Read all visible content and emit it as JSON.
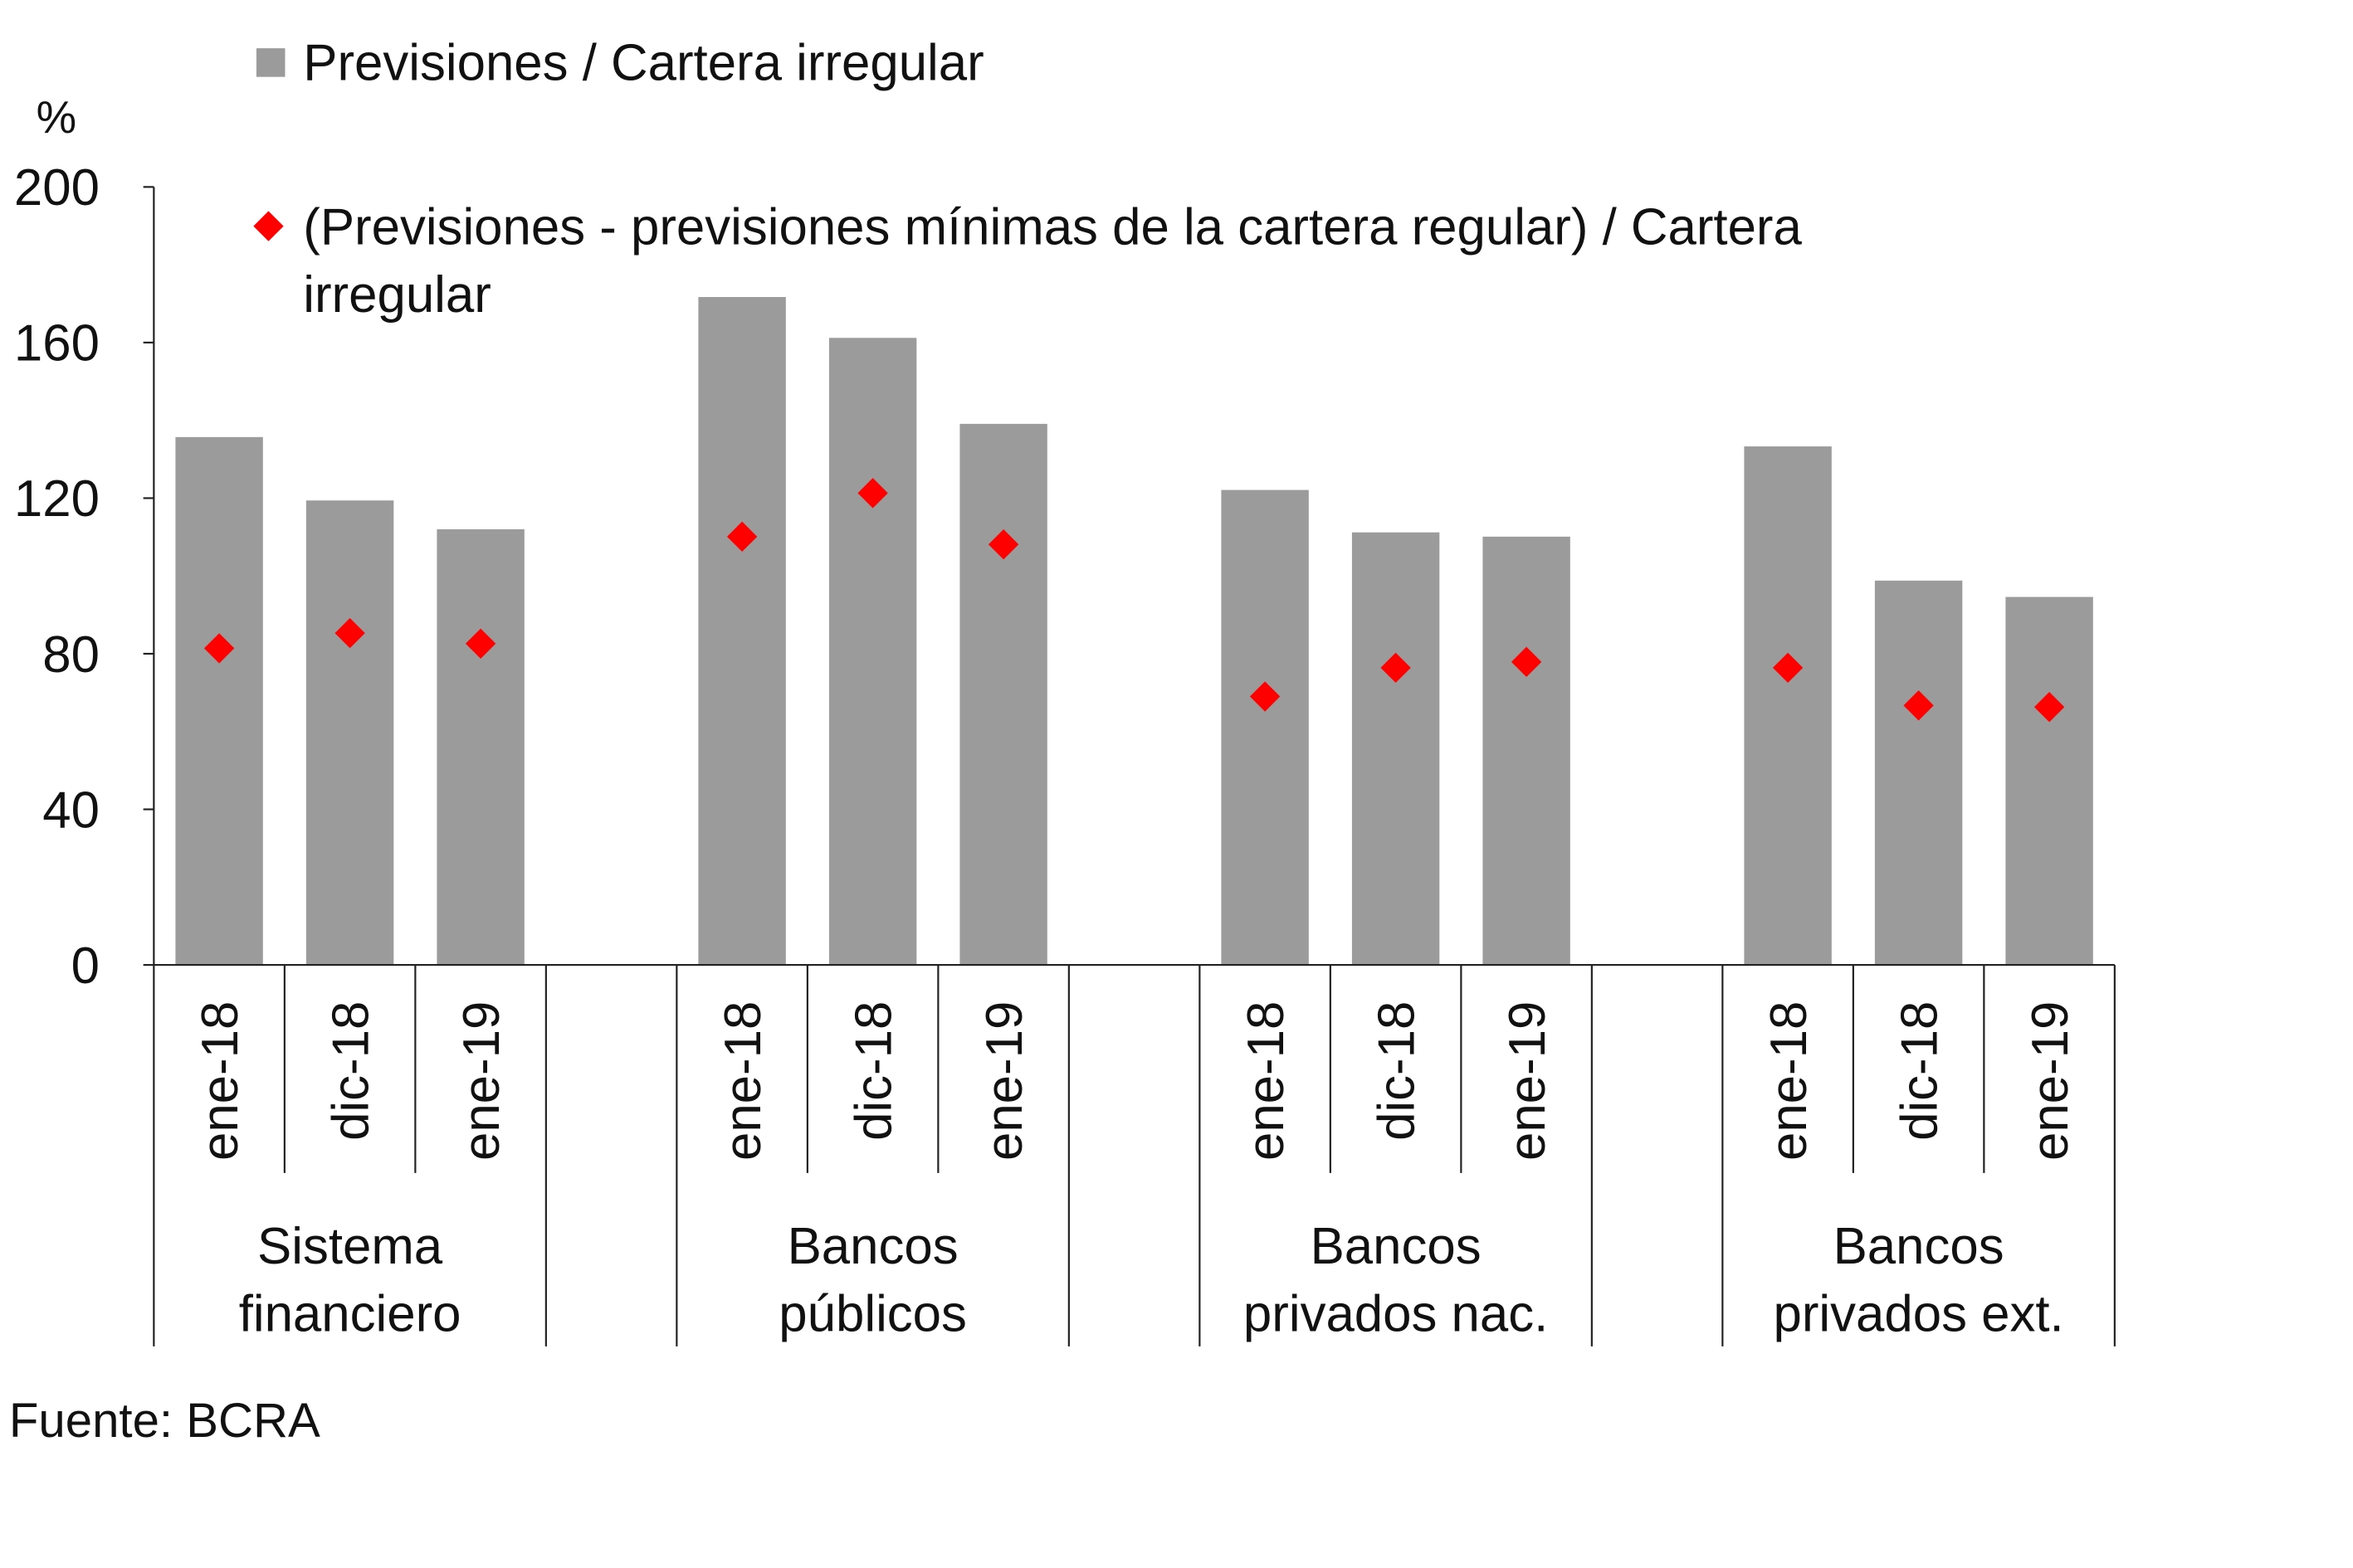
{
  "chart_data": {
    "type": "bar",
    "title": "",
    "ylabel": "%",
    "xlabel": "",
    "ylim": [
      0,
      200
    ],
    "yticks": [
      0,
      40,
      80,
      120,
      160,
      200
    ],
    "groups": [
      {
        "label_lines": [
          "Sistema",
          "financiero"
        ],
        "categories": [
          "ene-18",
          "dic-18",
          "ene-19"
        ]
      },
      {
        "label_lines": [
          "Bancos",
          "públicos"
        ],
        "categories": [
          "ene-18",
          "dic-18",
          "ene-19"
        ]
      },
      {
        "label_lines": [
          "Bancos",
          "privados nac."
        ],
        "categories": [
          "ene-18",
          "dic-18",
          "ene-19"
        ]
      },
      {
        "label_lines": [
          "Bancos",
          "privados ext."
        ],
        "categories": [
          "ene-18",
          "dic-18",
          "ene-19"
        ]
      }
    ],
    "series": [
      {
        "name": "Previsiones / Cartera irregular",
        "type": "bar",
        "color": "#9b9b9b",
        "values": [
          [
            135.7,
            119.4,
            112.0
          ],
          [
            171.7,
            161.2,
            139.1
          ],
          [
            122.1,
            111.2,
            110.1
          ],
          [
            133.3,
            98.8,
            94.6
          ]
        ]
      },
      {
        "name_lines": [
          "(Previsiones - previsiones mínimas de la cartera regular) / Cartera",
          "irregular"
        ],
        "type": "scatter",
        "marker": "diamond",
        "color": "#ff0000",
        "values": [
          [
            81.4,
            85.3,
            82.6
          ],
          [
            110.1,
            121.3,
            108.1
          ],
          [
            69.0,
            76.4,
            77.9
          ],
          [
            76.4,
            66.7,
            66.3
          ]
        ]
      }
    ],
    "legend_placement": "top-left",
    "source": "Fuente: BCRA"
  }
}
